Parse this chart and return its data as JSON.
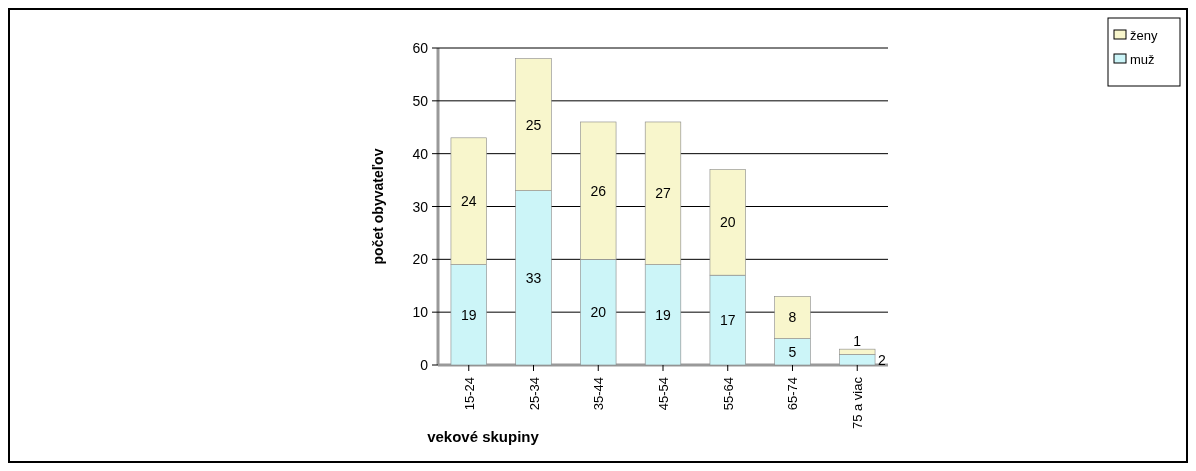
{
  "chart_data": {
    "type": "bar",
    "stacked": true,
    "xlabel": "vekové skupiny",
    "ylabel": "počet obyvateľov",
    "categories": [
      "15-24",
      "25-34",
      "35-44",
      "45-54",
      "55-64",
      "65-74",
      "75 a viac"
    ],
    "series": [
      {
        "name": "muž",
        "color": "#ccf5f8",
        "values": [
          19,
          33,
          20,
          19,
          17,
          5,
          2
        ]
      },
      {
        "name": "ženy",
        "color": "#f8f6cc",
        "values": [
          24,
          25,
          26,
          27,
          20,
          8,
          1
        ]
      }
    ],
    "ylim": [
      0,
      60
    ],
    "yticks": [
      0,
      10,
      20,
      30,
      40,
      50,
      60
    ],
    "grid": "y",
    "legend": "top right",
    "data_labels": true
  }
}
